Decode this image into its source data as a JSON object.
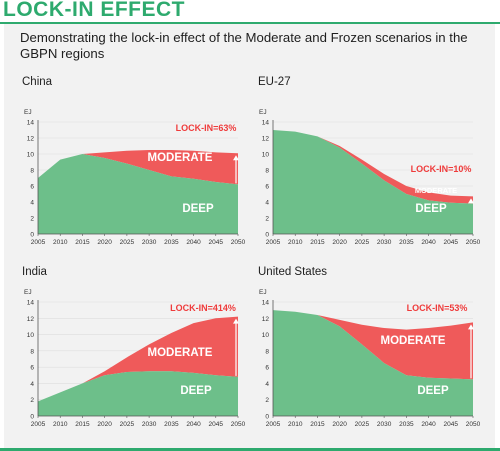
{
  "header": {
    "title": "LOCK-IN EFFECT"
  },
  "subtitle": "Demonstrating the lock-in effect of the Moderate and Frozen scenarios in the GBPN regions",
  "colors": {
    "deep": "#6dbf8a",
    "moderate": "#ef5a5a",
    "label": "#ef3b3b",
    "axis": "#555555",
    "grid": "#dddddd",
    "accent": "#2eaa6e"
  },
  "chart_data": [
    {
      "type": "area",
      "title": "China",
      "ylabel": "EJ",
      "x": [
        2005,
        2010,
        2015,
        2020,
        2025,
        2030,
        2035,
        2040,
        2045,
        2050
      ],
      "ylim": [
        0,
        14
      ],
      "yticks": [
        0,
        2,
        4,
        6,
        8,
        10,
        12,
        14
      ],
      "series": [
        {
          "name": "DEEP",
          "values": [
            7.0,
            9.3,
            10.0,
            9.5,
            8.8,
            8.0,
            7.2,
            6.9,
            6.5,
            6.2
          ]
        },
        {
          "name": "MODERATE",
          "values": [
            7.0,
            9.3,
            10.0,
            10.2,
            10.4,
            10.5,
            10.5,
            10.4,
            10.2,
            10.1
          ]
        }
      ],
      "lockin_label": "LOCK-IN=63%"
    },
    {
      "type": "area",
      "title": "EU-27",
      "ylabel": "EJ",
      "x": [
        2005,
        2010,
        2015,
        2020,
        2025,
        2030,
        2035,
        2040,
        2045,
        2050
      ],
      "ylim": [
        0,
        14
      ],
      "yticks": [
        0,
        2,
        4,
        6,
        8,
        10,
        12,
        14
      ],
      "series": [
        {
          "name": "DEEP",
          "values": [
            13.0,
            12.8,
            12.2,
            10.8,
            8.8,
            6.7,
            5.0,
            4.2,
            3.9,
            3.8
          ]
        },
        {
          "name": "MODERATE",
          "values": [
            13.0,
            12.8,
            12.2,
            11.0,
            9.3,
            7.5,
            6.0,
            5.2,
            4.8,
            4.7
          ]
        }
      ],
      "lockin_label": "LOCK-IN=10%"
    },
    {
      "type": "area",
      "title": "India",
      "ylabel": "EJ",
      "x": [
        2005,
        2010,
        2015,
        2020,
        2025,
        2030,
        2035,
        2040,
        2045,
        2050
      ],
      "ylim": [
        0,
        14
      ],
      "yticks": [
        0,
        2,
        4,
        6,
        8,
        10,
        12,
        14
      ],
      "series": [
        {
          "name": "DEEP",
          "values": [
            1.8,
            2.9,
            4.0,
            5.0,
            5.4,
            5.5,
            5.5,
            5.3,
            5.0,
            4.8
          ]
        },
        {
          "name": "MODERATE",
          "values": [
            1.8,
            2.9,
            4.0,
            5.5,
            7.2,
            8.8,
            10.2,
            11.4,
            12.0,
            12.2
          ]
        }
      ],
      "lockin_label": "LOCK-IN=414%"
    },
    {
      "type": "area",
      "title": "United States",
      "ylabel": "EJ",
      "x": [
        2005,
        2010,
        2015,
        2020,
        2025,
        2030,
        2035,
        2040,
        2045,
        2050
      ],
      "ylim": [
        0,
        14
      ],
      "yticks": [
        0,
        2,
        4,
        6,
        8,
        10,
        12,
        14
      ],
      "series": [
        {
          "name": "DEEP",
          "values": [
            13.0,
            12.8,
            12.4,
            11.0,
            8.8,
            6.5,
            5.0,
            4.7,
            4.6,
            4.5
          ]
        },
        {
          "name": "MODERATE",
          "values": [
            13.0,
            12.8,
            12.4,
            11.8,
            11.2,
            10.8,
            10.6,
            10.8,
            11.1,
            11.5
          ]
        }
      ],
      "lockin_label": "LOCK-IN=53%"
    }
  ]
}
